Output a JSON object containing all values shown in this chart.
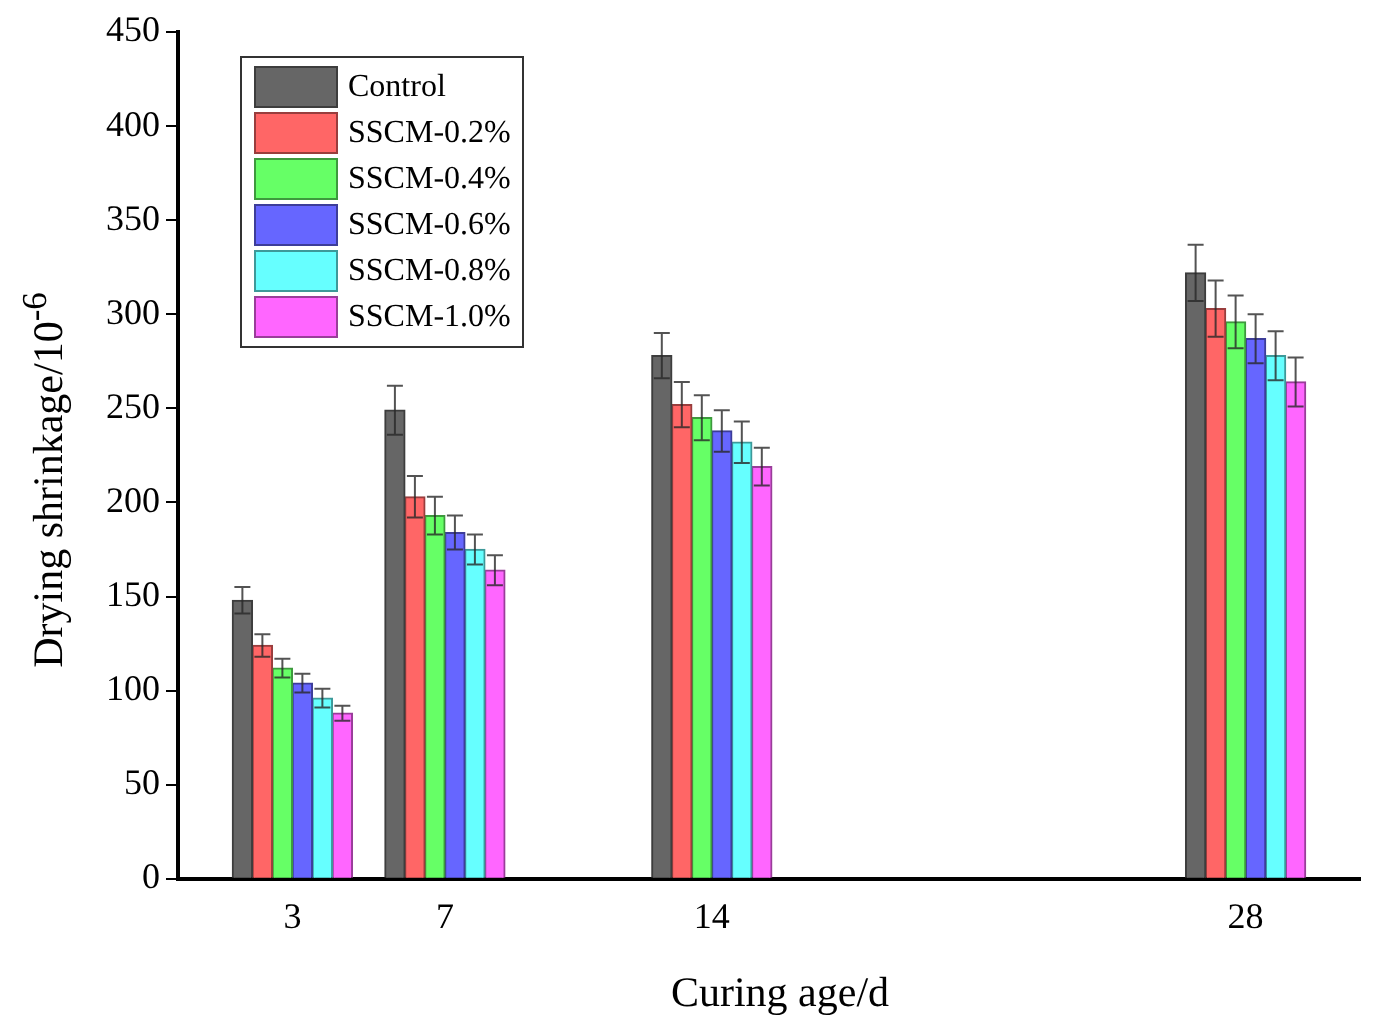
{
  "chart_data": {
    "type": "bar",
    "xlabel": "Curing age/d",
    "ylabel": "Drying shrinkage/10$^{-6}$",
    "x": [
      3,
      7,
      14,
      28
    ],
    "xlim": [
      0,
      31
    ],
    "xticks": [
      3,
      7,
      14,
      28
    ],
    "ylim": [
      0,
      450
    ],
    "yticks": [
      0,
      50,
      100,
      150,
      200,
      250,
      300,
      350,
      400,
      450
    ],
    "legend": "top left",
    "grid": false,
    "series": [
      {
        "name": "Control",
        "color": "#666666",
        "values": [
          148,
          249,
          278,
          322
        ],
        "errors": [
          7,
          13,
          12,
          15
        ]
      },
      {
        "name": "SSCM-0.2%",
        "color": "#ff6666",
        "values": [
          124,
          203,
          252,
          303
        ],
        "errors": [
          6,
          11,
          12,
          15
        ]
      },
      {
        "name": "SSCM-0.4%",
        "color": "#66ff66",
        "values": [
          112,
          193,
          245,
          296
        ],
        "errors": [
          5,
          10,
          12,
          14
        ]
      },
      {
        "name": "SSCM-0.6%",
        "color": "#6666ff",
        "values": [
          104,
          184,
          238,
          287
        ],
        "errors": [
          5,
          9,
          11,
          13
        ]
      },
      {
        "name": "SSCM-0.8%",
        "color": "#66ffff",
        "values": [
          96,
          175,
          232,
          278
        ],
        "errors": [
          5,
          8,
          11,
          13
        ]
      },
      {
        "name": "SSCM-1.0%",
        "color": "#ff66ff",
        "values": [
          88,
          164,
          219,
          264
        ],
        "errors": [
          4,
          8,
          10,
          13
        ]
      }
    ]
  }
}
